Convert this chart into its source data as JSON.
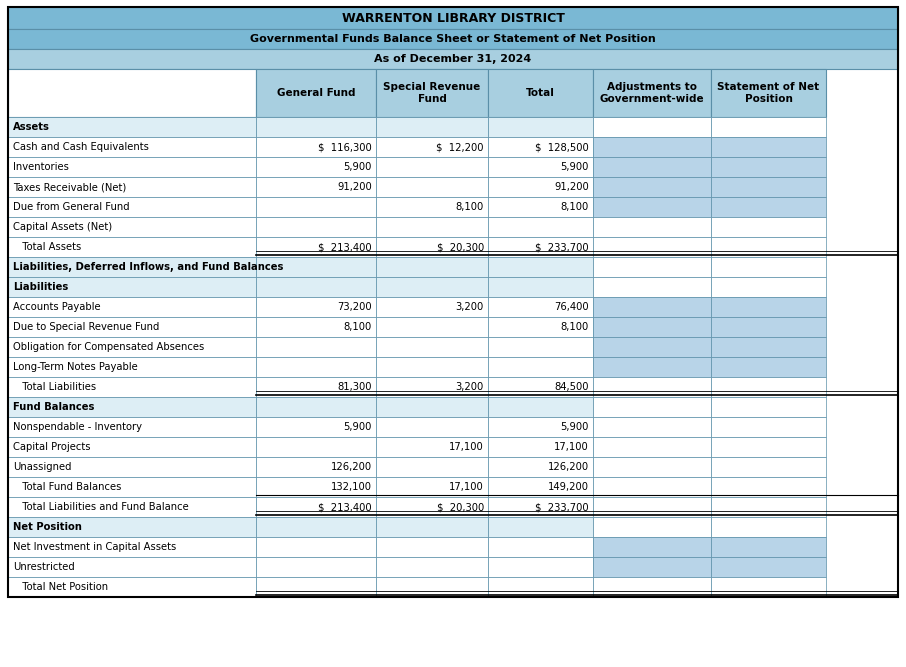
{
  "title1": "WARRENTON LIBRARY DISTRICT",
  "title2": "Governmental Funds Balance Sheet or Statement of Net Position",
  "title3": "As of December 31, 2024",
  "header_bg": "#7ab8d4",
  "col_header_bg": "#a8cfe0",
  "data_col_highlight": "#b8d4e8",
  "border_color": "#5a8fa8",
  "bold_border_color": "#3a6f8a",
  "columns": [
    "General Fund",
    "Special Revenue\nFund",
    "Total",
    "Adjustments to\nGovernment-wide",
    "Statement of Net\nPosition"
  ],
  "rows": [
    {
      "label": "Assets",
      "indent": 0,
      "bold": true,
      "values": [
        "",
        "",
        "",
        "",
        ""
      ],
      "style": "subheader",
      "highlight_45": false
    },
    {
      "label": "Cash and Cash Equivalents",
      "indent": 0,
      "bold": false,
      "values": [
        "$  116,300",
        "$  12,200",
        "$  128,500",
        "",
        ""
      ],
      "style": "data",
      "highlight_45": true,
      "dollar_cols": [
        0,
        1,
        2
      ]
    },
    {
      "label": "Inventories",
      "indent": 0,
      "bold": false,
      "values": [
        "5,900",
        "",
        "5,900",
        "",
        ""
      ],
      "style": "data",
      "highlight_45": true,
      "dollar_cols": []
    },
    {
      "label": "Taxes Receivable (Net)",
      "indent": 0,
      "bold": false,
      "values": [
        "91,200",
        "",
        "91,200",
        "",
        ""
      ],
      "style": "data",
      "highlight_45": true,
      "dollar_cols": []
    },
    {
      "label": "Due from General Fund",
      "indent": 0,
      "bold": false,
      "values": [
        "",
        "8,100",
        "8,100",
        "",
        ""
      ],
      "style": "data",
      "highlight_45": true,
      "dollar_cols": []
    },
    {
      "label": "Capital Assets (Net)",
      "indent": 0,
      "bold": false,
      "values": [
        "",
        "",
        "",
        "",
        ""
      ],
      "style": "data",
      "highlight_45": false
    },
    {
      "label": "   Total Assets",
      "indent": 1,
      "bold": false,
      "values": [
        "$  213,400",
        "$  20,300",
        "$  233,700",
        "",
        ""
      ],
      "style": "total",
      "highlight_45": false,
      "dollar_cols": [
        0,
        1,
        2
      ]
    },
    {
      "label": "Liabilities, Deferred Inflows, and Fund Balances",
      "indent": 0,
      "bold": true,
      "values": [
        "",
        "",
        "",
        "",
        ""
      ],
      "style": "subheader",
      "highlight_45": false
    },
    {
      "label": "Liabilities",
      "indent": 0,
      "bold": true,
      "values": [
        "",
        "",
        "",
        "",
        ""
      ],
      "style": "subheader",
      "highlight_45": false
    },
    {
      "label": "Accounts Payable",
      "indent": 0,
      "bold": false,
      "values": [
        "73,200",
        "3,200",
        "76,400",
        "",
        ""
      ],
      "style": "data",
      "highlight_45": true,
      "dollar_cols": []
    },
    {
      "label": "Due to Special Revenue Fund",
      "indent": 0,
      "bold": false,
      "values": [
        "8,100",
        "",
        "8,100",
        "",
        ""
      ],
      "style": "data",
      "highlight_45": true,
      "dollar_cols": []
    },
    {
      "label": "Obligation for Compensated Absences",
      "indent": 0,
      "bold": false,
      "values": [
        "",
        "",
        "",
        "",
        ""
      ],
      "style": "data",
      "highlight_45": true
    },
    {
      "label": "Long-Term Notes Payable",
      "indent": 0,
      "bold": false,
      "values": [
        "",
        "",
        "",
        "",
        ""
      ],
      "style": "data",
      "highlight_45": true
    },
    {
      "label": "   Total Liabilities",
      "indent": 1,
      "bold": false,
      "values": [
        "81,300",
        "3,200",
        "84,500",
        "",
        ""
      ],
      "style": "total",
      "highlight_45": false,
      "dollar_cols": []
    },
    {
      "label": "Fund Balances",
      "indent": 0,
      "bold": true,
      "values": [
        "",
        "",
        "",
        "",
        ""
      ],
      "style": "subheader",
      "highlight_45": false
    },
    {
      "label": "Nonspendable - Inventory",
      "indent": 0,
      "bold": false,
      "values": [
        "5,900",
        "",
        "5,900",
        "",
        ""
      ],
      "style": "data",
      "highlight_45": false,
      "dollar_cols": []
    },
    {
      "label": "Capital Projects",
      "indent": 0,
      "bold": false,
      "values": [
        "",
        "17,100",
        "17,100",
        "",
        ""
      ],
      "style": "data",
      "highlight_45": false,
      "dollar_cols": []
    },
    {
      "label": "Unassigned",
      "indent": 0,
      "bold": false,
      "values": [
        "126,200",
        "",
        "126,200",
        "",
        ""
      ],
      "style": "data",
      "highlight_45": false,
      "dollar_cols": []
    },
    {
      "label": "   Total Fund Balances",
      "indent": 1,
      "bold": false,
      "values": [
        "132,100",
        "17,100",
        "149,200",
        "",
        ""
      ],
      "style": "subtotal",
      "highlight_45": false,
      "dollar_cols": []
    },
    {
      "label": "   Total Liabilities and Fund Balance",
      "indent": 1,
      "bold": false,
      "values": [
        "$  213,400",
        "$  20,300",
        "$  233,700",
        "",
        ""
      ],
      "style": "total",
      "highlight_45": false,
      "dollar_cols": [
        0,
        1,
        2
      ]
    },
    {
      "label": "Net Position",
      "indent": 0,
      "bold": true,
      "values": [
        "",
        "",
        "",
        "",
        ""
      ],
      "style": "subheader",
      "highlight_45": false
    },
    {
      "label": "Net Investment in Capital Assets",
      "indent": 0,
      "bold": false,
      "values": [
        "",
        "",
        "",
        "",
        ""
      ],
      "style": "data",
      "highlight_45": true
    },
    {
      "label": "Unrestricted",
      "indent": 0,
      "bold": false,
      "values": [
        "",
        "",
        "",
        "",
        ""
      ],
      "style": "data",
      "highlight_45": true
    },
    {
      "label": "   Total Net Position",
      "indent": 1,
      "bold": false,
      "values": [
        "",
        "",
        "",
        "",
        ""
      ],
      "style": "total",
      "highlight_45": false
    }
  ]
}
